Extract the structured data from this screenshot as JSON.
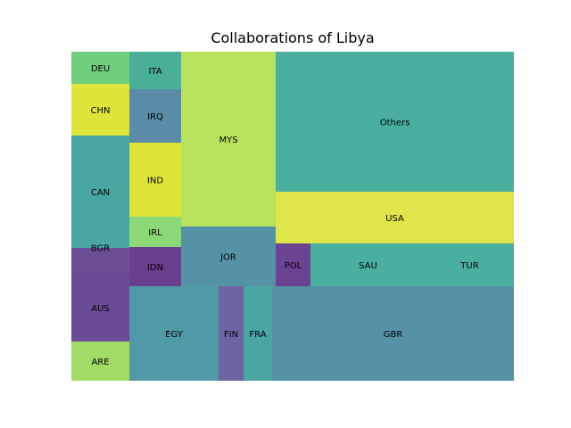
{
  "chart_data": {
    "type": "treemap",
    "title": "Collaborations of Libya",
    "items": [
      {
        "label": "DEU",
        "value": 1,
        "color": "#6fcf7d"
      },
      {
        "label": "CHN",
        "value": 1.5,
        "color": "#dfe43a"
      },
      {
        "label": "CAN",
        "value": 3.2,
        "color": "#4aa6a1"
      },
      {
        "label": "BGR",
        "value": 0.8,
        "color": "#6b4e96"
      },
      {
        "label": "AUS",
        "value": 1.7,
        "color": "#6a4b95"
      },
      {
        "label": "ARE",
        "value": 1.1,
        "color": "#a0dc66"
      },
      {
        "label": "ITA",
        "value": 0.6,
        "color": "#4aaf97"
      },
      {
        "label": "IRQ",
        "value": 0.9,
        "color": "#5a8ca8"
      },
      {
        "label": "IND",
        "value": 1.2,
        "color": "#dfe43a"
      },
      {
        "label": "IRL",
        "value": 0.5,
        "color": "#8bd878"
      },
      {
        "label": "IDN",
        "value": 0.6,
        "color": "#6a3f8e"
      },
      {
        "label": "MYS",
        "value": 5.3,
        "color": "#b9e25c"
      },
      {
        "label": "JOR",
        "value": 1.8,
        "color": "#5493a6"
      },
      {
        "label": "EGY",
        "value": 2.6,
        "color": "#4f9aa6"
      },
      {
        "label": "FIN",
        "value": 0.7,
        "color": "#6e64a3"
      },
      {
        "label": "FRA",
        "value": 0.8,
        "color": "#4aa6a1"
      },
      {
        "label": "Others",
        "value": 10.5,
        "color": "#4aaf9f"
      },
      {
        "label": "USA",
        "value": 3.9,
        "color": "#dfe64a"
      },
      {
        "label": "POL",
        "value": 0.5,
        "color": "#6a4393"
      },
      {
        "label": "SAU",
        "value": 1.6,
        "color": "#4aaf9f"
      },
      {
        "label": "TUR",
        "value": 1.3,
        "color": "#4aaf9f"
      },
      {
        "label": "GBR",
        "value": 7.1,
        "color": "#5692a7"
      }
    ]
  }
}
